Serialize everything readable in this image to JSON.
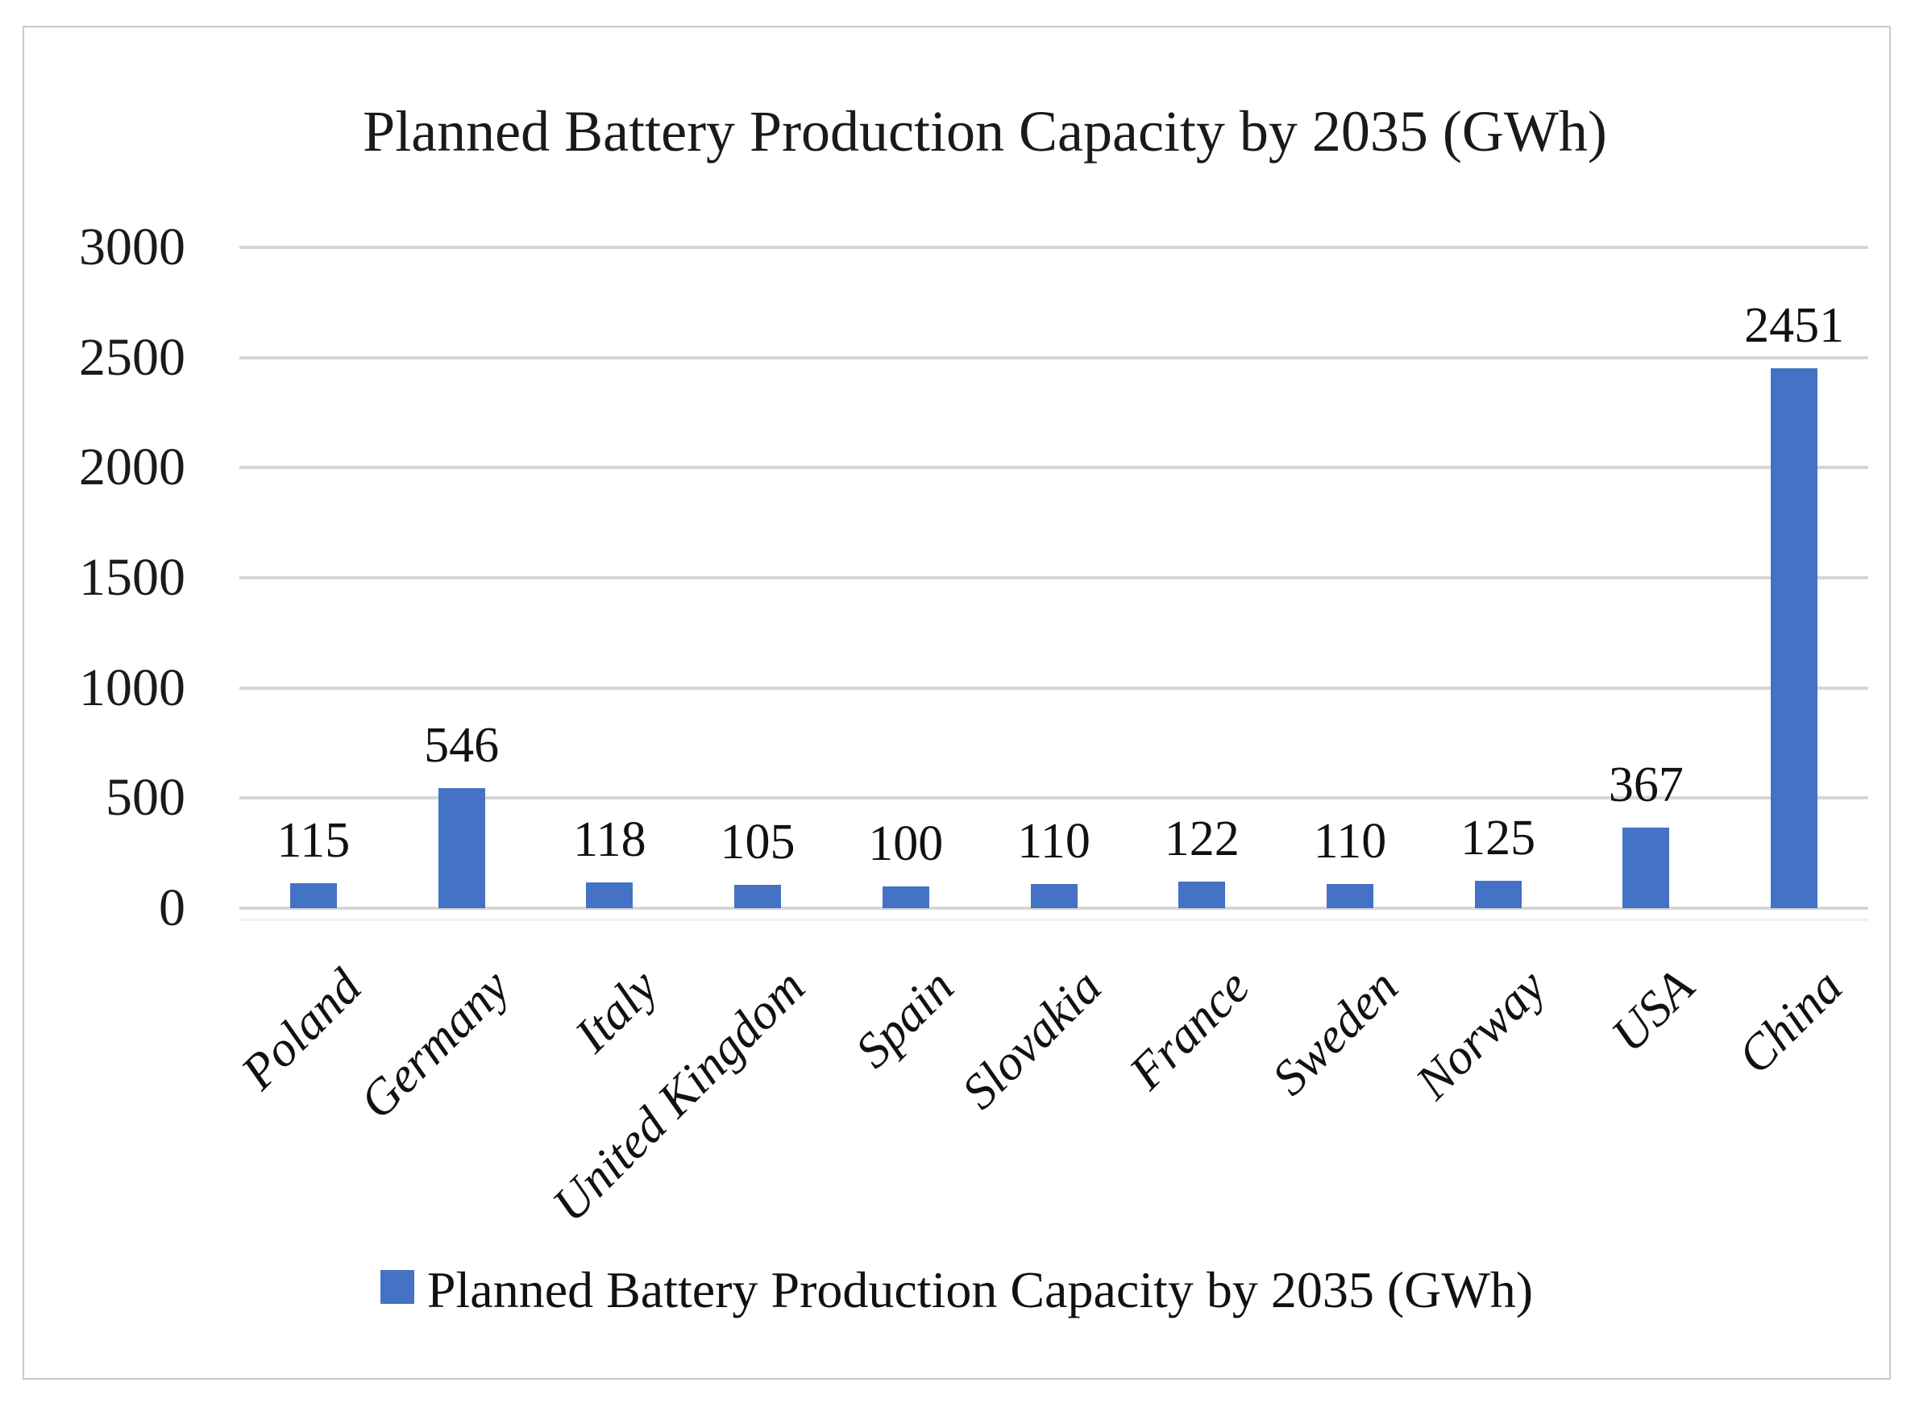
{
  "chart_data": {
    "type": "bar",
    "title": "Planned Battery Production Capacity by 2035 (GWh)",
    "categories": [
      "Poland",
      "Germany",
      "Italy",
      "United Kingdom",
      "Spain",
      "Slovakia",
      "France",
      "Sweden",
      "Norway",
      "USA",
      "China"
    ],
    "series": [
      {
        "name": "Planned Battery Production Capacity by 2035 (GWh)",
        "values": [
          115,
          546,
          118,
          105,
          100,
          110,
          122,
          110,
          125,
          367,
          2451
        ]
      }
    ],
    "data_labels": [
      115,
      546,
      118,
      105,
      100,
      110,
      122,
      110,
      125,
      367,
      2451
    ],
    "xlabel": "",
    "ylabel": "",
    "ylim": [
      0,
      3000
    ],
    "yticks": [
      0,
      500,
      1000,
      1500,
      2000,
      2500,
      3000
    ],
    "grid": "horizontal",
    "legend_position": "bottom",
    "x_label_rotation_deg": 45
  },
  "colors": {
    "bar": "#4472C4",
    "gridline": "#D6D6D6",
    "frame_border": "#C9C9C9",
    "text": "#1A1A1A"
  }
}
